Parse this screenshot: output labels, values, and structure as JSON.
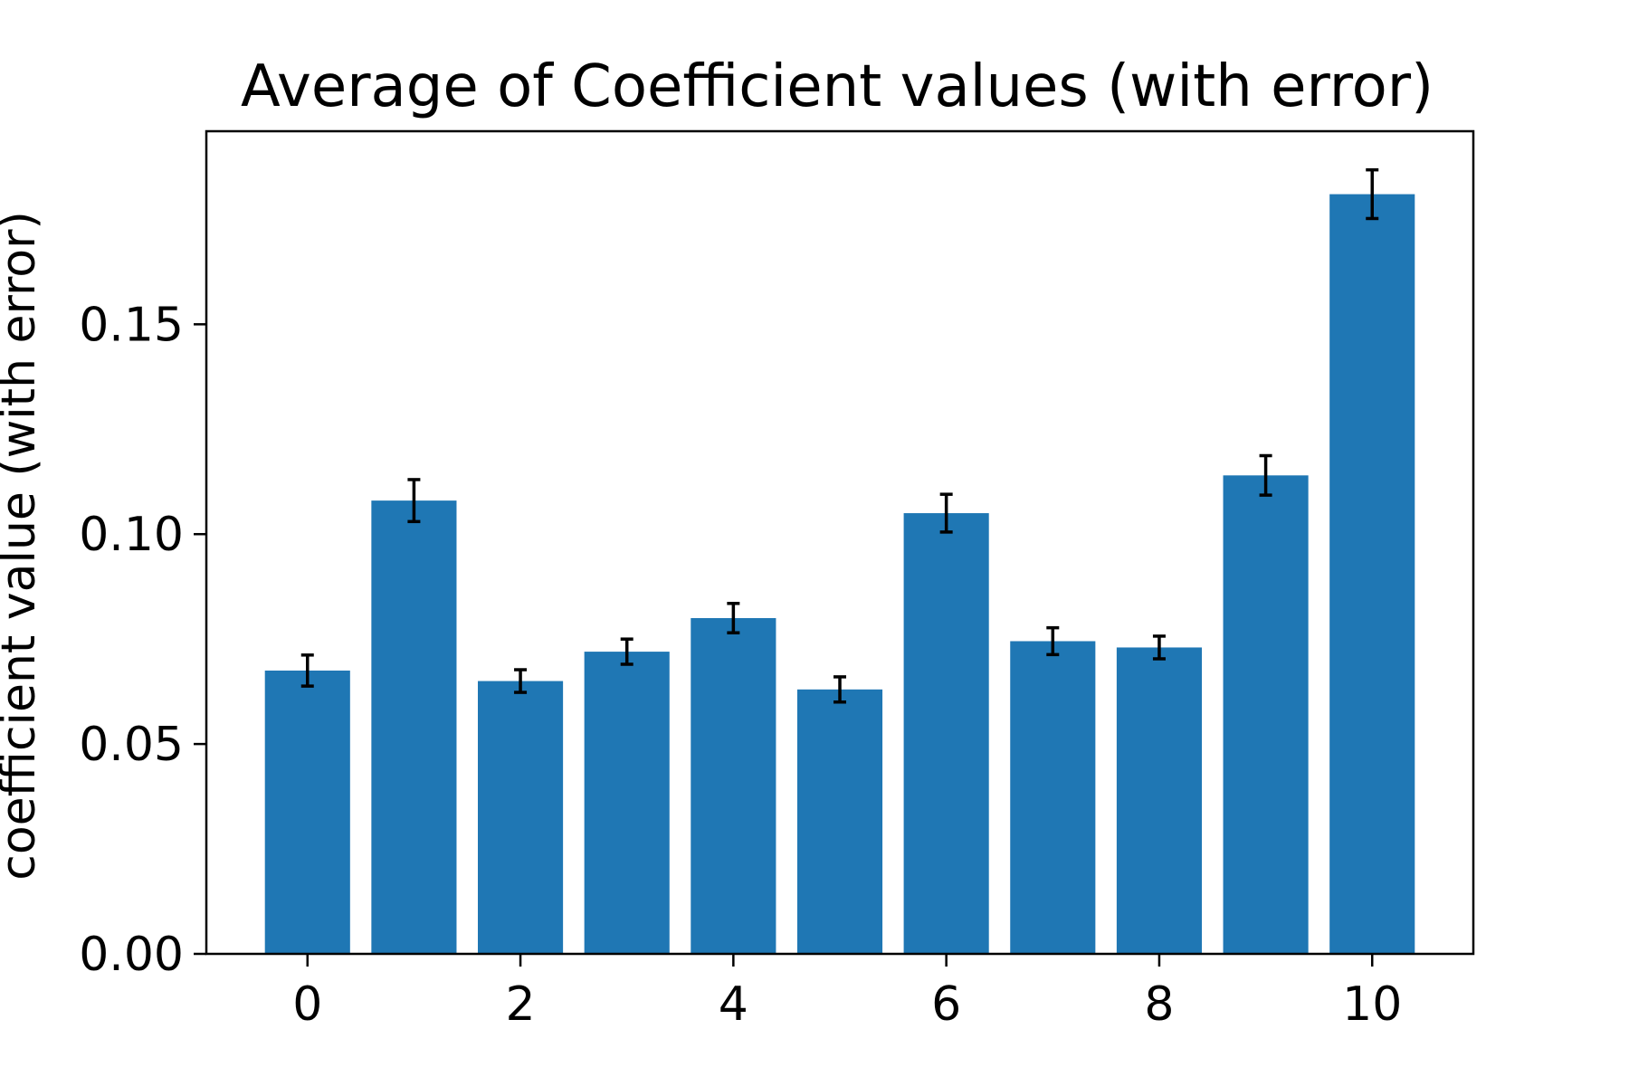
{
  "chart_data": {
    "type": "bar",
    "title": "Average of Coefficient values (with error)",
    "xlabel": "",
    "ylabel": "coefficient value (with error)",
    "categories": [
      0,
      1,
      2,
      3,
      4,
      5,
      6,
      7,
      8,
      9,
      10
    ],
    "values": [
      0.0675,
      0.108,
      0.065,
      0.072,
      0.08,
      0.063,
      0.105,
      0.0745,
      0.073,
      0.114,
      0.181
    ],
    "errors": [
      0.0037,
      0.005,
      0.0027,
      0.003,
      0.0035,
      0.003,
      0.0045,
      0.0032,
      0.0027,
      0.0047,
      0.0058
    ],
    "xticks": [
      0,
      2,
      4,
      6,
      8,
      10
    ],
    "xlim": [
      -0.95,
      10.95
    ],
    "yticks": [
      0.0,
      0.05,
      0.1,
      0.15
    ],
    "ytick_labels": [
      "0.00",
      "0.05",
      "0.10",
      "0.15"
    ],
    "ylim": [
      0,
      0.196
    ],
    "grid": false,
    "legend": "none",
    "bar_color": "#1f77b4",
    "error_color": "#000000"
  }
}
